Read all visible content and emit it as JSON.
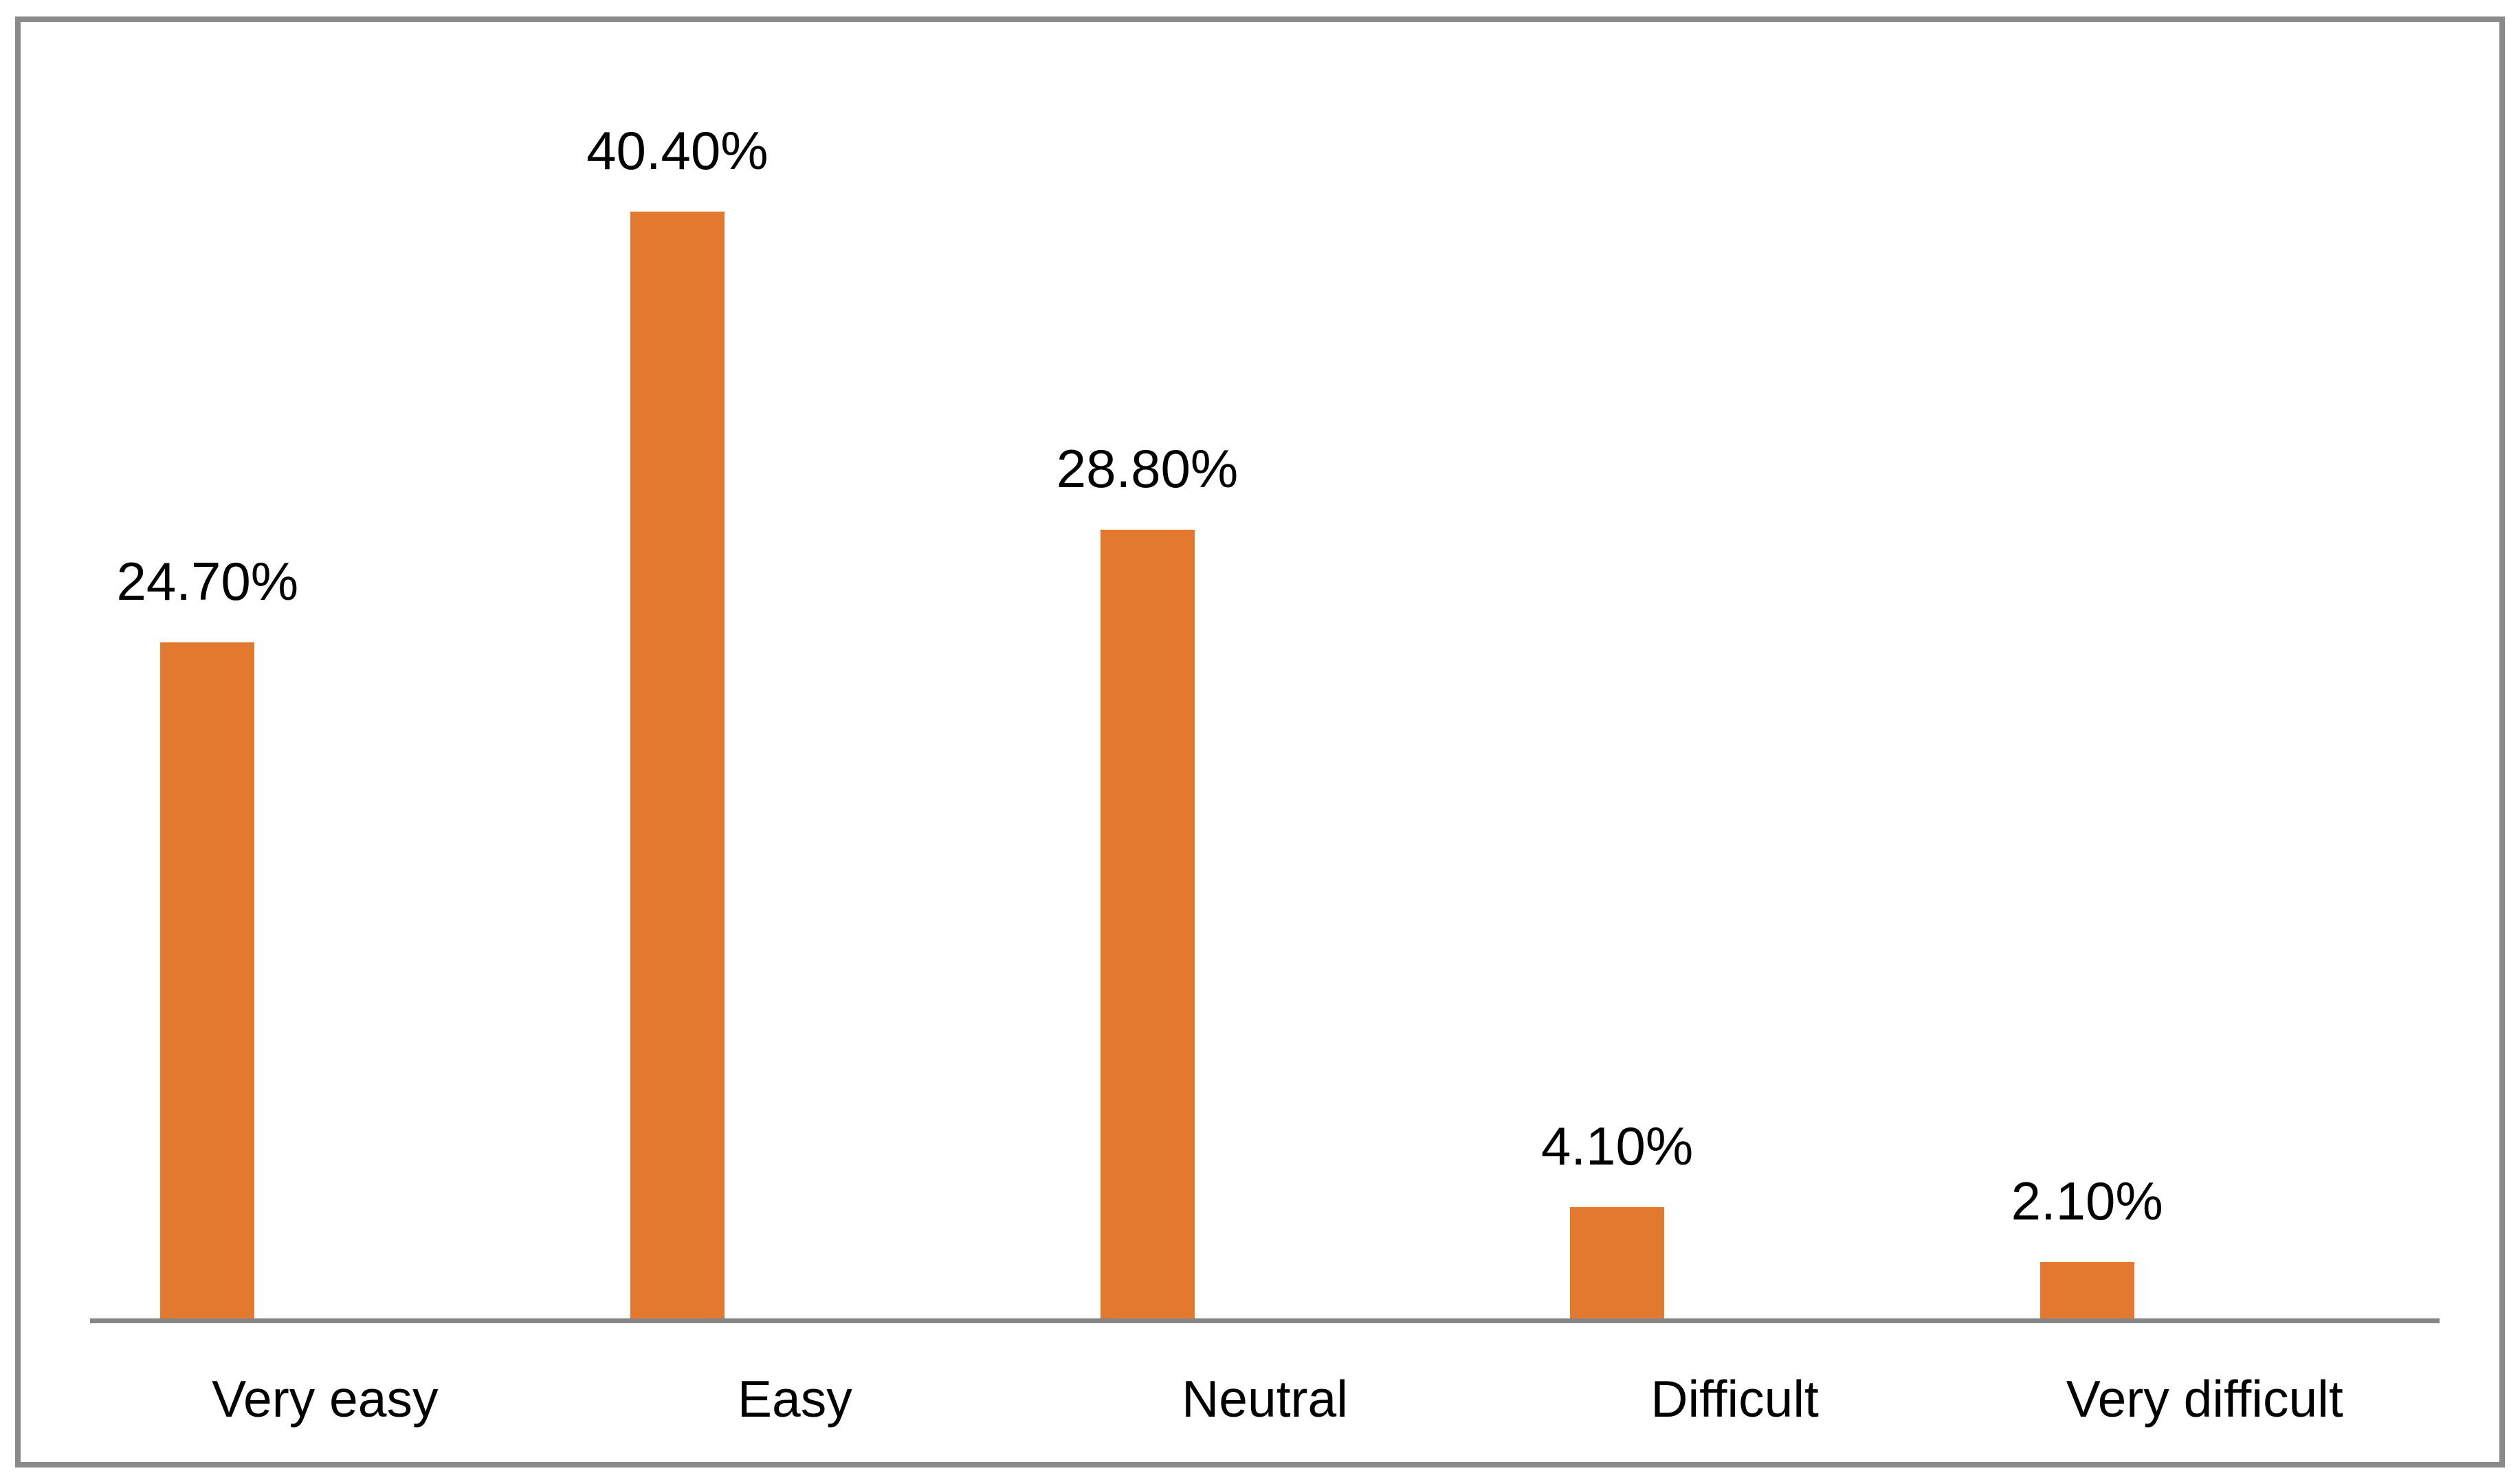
{
  "figure": {
    "background_color": "#FFFFFF",
    "frame_color": "#8A8A8A"
  },
  "chart_data": {
    "type": "bar",
    "title": "",
    "xlabel": "",
    "ylabel": "",
    "categories": [
      "Very easy",
      "Easy",
      "Neutral",
      "Difficult",
      "Very difficult"
    ],
    "values": [
      24.7,
      40.4,
      28.8,
      4.1,
      2.1
    ],
    "data_labels": [
      "24.70%",
      "40.40%",
      "28.80%",
      "4.10%",
      "2.10%"
    ],
    "series_name": "",
    "ylim": [
      0,
      45
    ],
    "grid": false,
    "legend_position": "none",
    "y_axis_visible": false,
    "bar_color": "#E2792F",
    "axis_line_color": "#868686",
    "label_text_color": "#000000"
  }
}
